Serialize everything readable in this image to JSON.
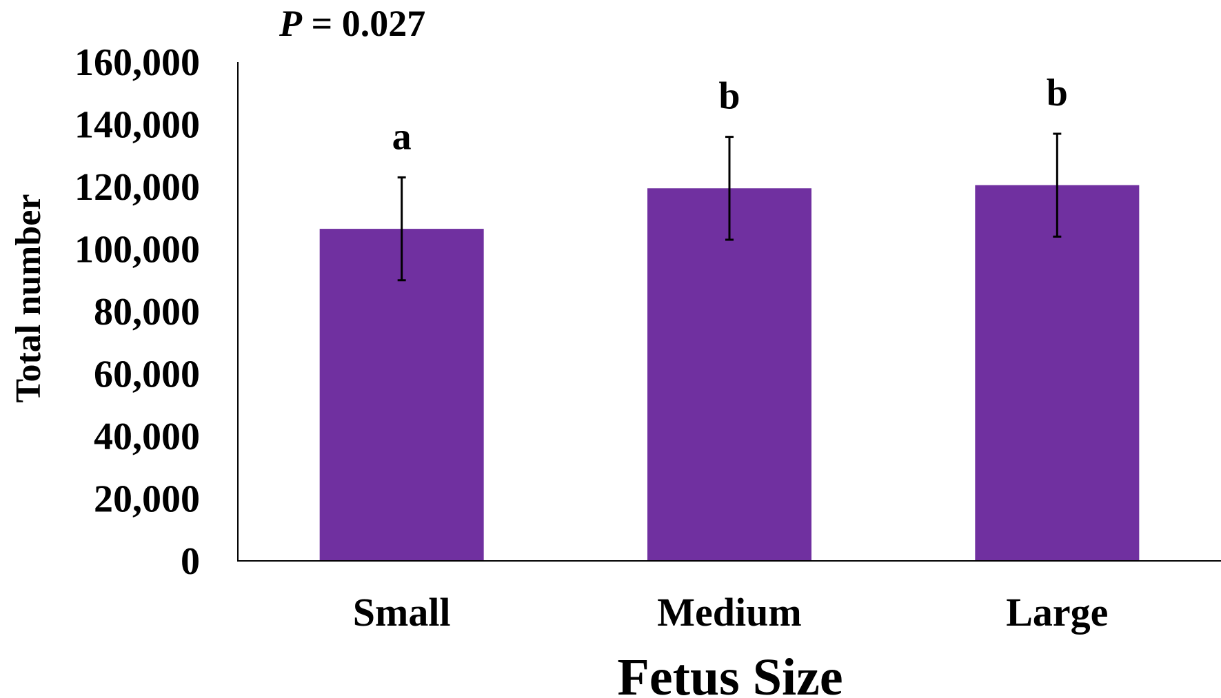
{
  "annotation": {
    "p_symbol": "P",
    "p_rest": " = 0.027"
  },
  "chart_data": {
    "type": "bar",
    "categories": [
      "Small",
      "Medium",
      "Large"
    ],
    "values": [
      106500,
      119500,
      120500
    ],
    "error": [
      16500,
      16500,
      16500
    ],
    "significance_letters": [
      "a",
      "b",
      "b"
    ],
    "xlabel": "Fetus Size",
    "ylabel": "Total number",
    "ylim": [
      0,
      160000
    ],
    "yticks": [
      0,
      20000,
      40000,
      60000,
      80000,
      100000,
      120000,
      140000,
      160000
    ],
    "ytick_labels": [
      "0",
      "20,000",
      "40,000",
      "60,000",
      "80,000",
      "100,000",
      "120,000",
      "140,000",
      "160,000"
    ],
    "bar_color": "#7030a0",
    "grid": false,
    "legend": "none"
  }
}
